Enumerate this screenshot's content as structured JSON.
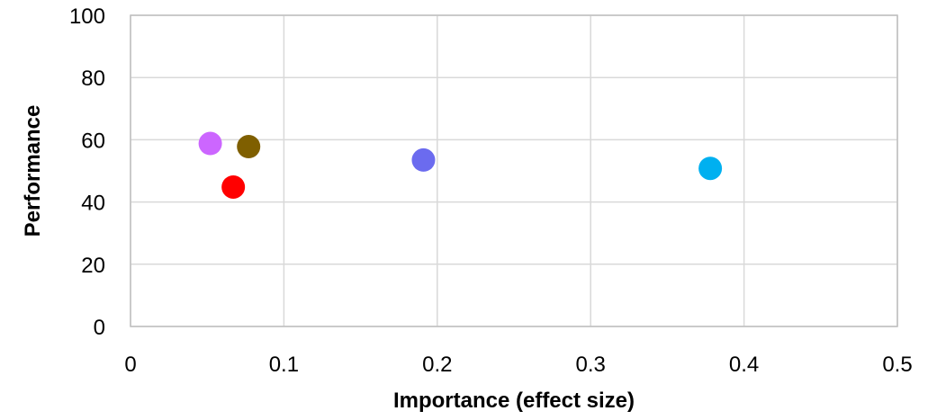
{
  "chart_data": {
    "type": "scatter",
    "title": "",
    "xlabel": "Importance (effect size)",
    "ylabel": "Performance",
    "xlim": [
      0,
      0.5
    ],
    "ylim": [
      0,
      100
    ],
    "xticks": [
      0,
      0.1,
      0.2,
      0.3,
      0.4,
      0.5
    ],
    "xtick_labels": [
      "0",
      "0.1",
      "0.2",
      "0.3",
      "0.4",
      "0.5"
    ],
    "yticks": [
      0,
      20,
      40,
      60,
      80,
      100
    ],
    "ytick_labels": [
      "0",
      "20",
      "40",
      "60",
      "80",
      "100"
    ],
    "grid": true,
    "legend": "none",
    "points": [
      {
        "x": 0.052,
        "y": 58.8,
        "color": "#cc66ff"
      },
      {
        "x": 0.077,
        "y": 57.8,
        "color": "#7f5f00"
      },
      {
        "x": 0.067,
        "y": 44.8,
        "color": "#ff0000"
      },
      {
        "x": 0.191,
        "y": 53.5,
        "color": "#6b6bef"
      },
      {
        "x": 0.378,
        "y": 50.8,
        "color": "#00b0f0"
      }
    ]
  }
}
